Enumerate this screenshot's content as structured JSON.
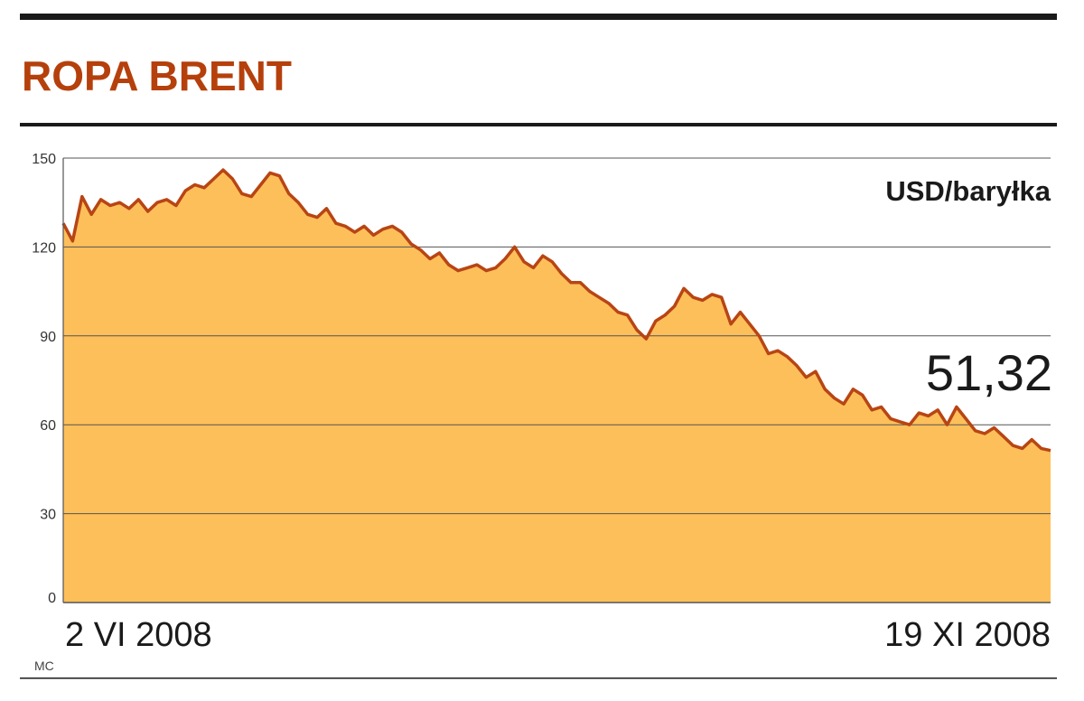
{
  "title": "ROPA BRENT",
  "credit": "MC",
  "colors": {
    "title": "#b5400c",
    "area_fill": "#fdbf5a",
    "line": "#b84514",
    "rule": "#1a1a1a",
    "grid": "#555555"
  },
  "chart_data": {
    "type": "area",
    "title": "ROPA BRENT",
    "unit": "USD/baryłka",
    "start_label": "2 VI 2008",
    "end_label": "19 XI 2008",
    "last_value_label": "51,32",
    "ylim": [
      0,
      150
    ],
    "yticks": [
      0,
      30,
      60,
      90,
      120,
      150
    ],
    "grid": true,
    "series": [
      {
        "values": [
          128,
          122,
          137,
          131,
          136,
          134,
          135,
          133,
          136,
          132,
          135,
          136,
          134,
          139,
          141,
          140,
          143,
          146,
          143,
          138,
          137,
          141,
          145,
          144,
          138,
          135,
          131,
          130,
          133,
          128,
          127,
          125,
          127,
          124,
          126,
          127,
          125,
          121,
          119,
          116,
          118,
          114,
          112,
          113,
          114,
          112,
          113,
          116,
          120,
          115,
          113,
          117,
          115,
          111,
          108,
          108,
          105,
          103,
          101,
          98,
          97,
          92,
          89,
          95,
          97,
          100,
          106,
          103,
          102,
          104,
          103,
          94,
          98,
          94,
          90,
          84,
          85,
          83,
          80,
          76,
          78,
          72,
          69,
          67,
          72,
          70,
          65,
          66,
          62,
          61,
          60,
          64,
          63,
          65,
          60,
          66,
          62,
          58,
          57,
          59,
          56,
          53,
          52,
          55,
          52,
          51.32
        ]
      }
    ]
  }
}
